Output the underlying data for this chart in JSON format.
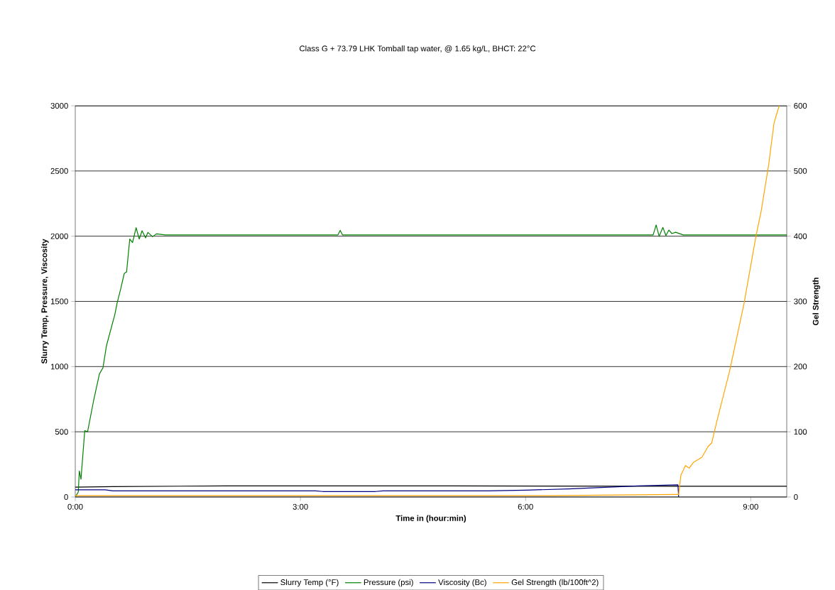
{
  "chart_data": {
    "type": "line",
    "subtitle": "Class G + 73.79 LHK Tomball tap water, @ 1.65 kg/L, BHCT: 22°C",
    "xlabel": "Time in (hour:min)",
    "ylabel": "Slurry Temp, Pressure, Viscosity",
    "y2label": "Gel Strength",
    "xlim": [
      0,
      9.48
    ],
    "xticks": [
      {
        "value": 0,
        "label": "0:00"
      },
      {
        "value": 3,
        "label": "3:00"
      },
      {
        "value": 6,
        "label": "6:00"
      },
      {
        "value": 9,
        "label": "9:00"
      }
    ],
    "ylim": [
      0,
      3000
    ],
    "yticks": [
      0,
      500,
      1000,
      1500,
      2000,
      2500,
      3000
    ],
    "y2lim": [
      0,
      600
    ],
    "y2ticks": [
      0,
      100,
      200,
      300,
      400,
      500,
      600
    ],
    "grid": "y",
    "legend": "bottom",
    "series": [
      {
        "name": "Slurry Temp (°F)",
        "color": "#000000",
        "x": [
          0,
          0.5,
          2,
          5,
          8,
          9.48
        ],
        "values": [
          75,
          80,
          85,
          85,
          82,
          82
        ]
      },
      {
        "name": "Pressure (psi)",
        "color": "#008000",
        "x": [
          0,
          0.04,
          0.054,
          0.076,
          0.126,
          0.164,
          0.243,
          0.322,
          0.369,
          0.416,
          0.527,
          0.558,
          0.606,
          0.653,
          0.684,
          0.726,
          0.763,
          0.811,
          0.852,
          0.89,
          0.937,
          0.968,
          1.03,
          1.08,
          1.2,
          3.5,
          3.53,
          3.56,
          5.0,
          7.7,
          7.74,
          7.78,
          7.83,
          7.87,
          7.91,
          7.95,
          8.0,
          8.1,
          9.48
        ],
        "values": [
          0,
          38,
          200,
          136,
          508,
          500,
          735,
          944,
          991,
          1161,
          1399,
          1488,
          1597,
          1715,
          1726,
          1978,
          1951,
          2065,
          1978,
          2042,
          1987,
          2029,
          1996,
          2018,
          2010,
          2010,
          2045,
          2010,
          2010,
          2010,
          2086,
          1999,
          2067,
          2005,
          2047,
          2020,
          2030,
          2010,
          2010
        ]
      },
      {
        "name": "Viscosity (Bc)",
        "color": "#000080",
        "x": [
          0,
          0.4,
          0.5,
          3.2,
          3.3,
          4.0,
          4.1,
          5.5,
          6.0,
          6.57,
          7.5,
          8.03,
          8.04
        ],
        "values": [
          55,
          55,
          47,
          47,
          42,
          42,
          47,
          47,
          52,
          62,
          85,
          93,
          0
        ]
      },
      {
        "name": "Gel Strength (lb/100ft^2)",
        "color": "#ffa500",
        "axis": "y2",
        "x": [
          0,
          6.3,
          8.03,
          8.04,
          8.07,
          8.13,
          8.18,
          8.24,
          8.35,
          8.43,
          8.48,
          8.55,
          8.72,
          8.91,
          9.07,
          9.14,
          9.24,
          9.31,
          9.34,
          9.38
        ],
        "values": [
          2,
          2,
          4,
          4,
          33.6,
          48.2,
          44.3,
          53.4,
          61,
          77,
          83,
          116.6,
          193.7,
          296,
          400,
          438.7,
          510,
          573,
          585,
          600
        ]
      }
    ]
  }
}
